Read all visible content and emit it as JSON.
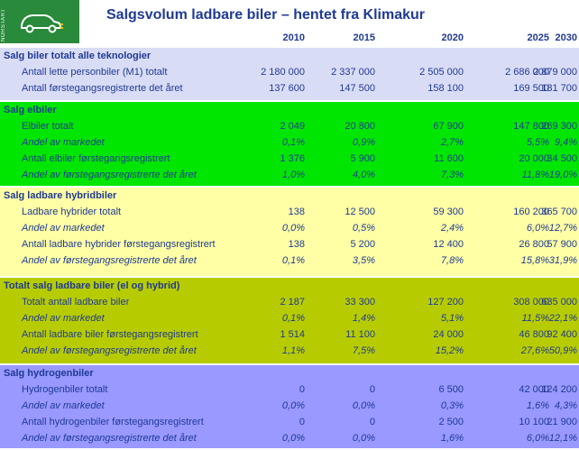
{
  "title": "Salgsvolum ladbare biler – hentet fra Klimakur",
  "logo": {
    "brand": "NORSTART",
    "icon": "electric-car-plug-icon"
  },
  "years": [
    "2010",
    "2015",
    "2020",
    "2025",
    "2030"
  ],
  "sections": [
    {
      "header": "Salg biler totalt alle teknologier",
      "color": "#d9dcf5",
      "rows": [
        {
          "label": "Antall lette personbiler (M1) totalt",
          "italic": false,
          "values": [
            "2 180 000",
            "2 337 000",
            "2 505 000",
            "2 686 000",
            "2 879 000"
          ]
        },
        {
          "label": "Antall førstegangsregistrerte det året",
          "italic": false,
          "values": [
            "137 600",
            "147 500",
            "158 100",
            "169 500",
            "181 700"
          ]
        }
      ]
    },
    {
      "header": "Salg elbiler",
      "color": "#00e600",
      "rows": [
        {
          "label": "Elbiler totalt",
          "italic": false,
          "values": [
            "2 049",
            "20 800",
            "67 900",
            "147 800",
            "269 300"
          ]
        },
        {
          "label": "Andel av markedet",
          "italic": true,
          "values": [
            "0,1%",
            "0,9%",
            "2,7%",
            "5,5%",
            "9,4%"
          ]
        },
        {
          "label": "Antall elbiler førstegangsregistrert",
          "italic": false,
          "values": [
            "1 376",
            "5 900",
            "11 600",
            "20 000",
            "34 500"
          ]
        },
        {
          "label": "Andel av førstegangsregistrerte det året",
          "italic": true,
          "values": [
            "1,0%",
            "4,0%",
            "7,3%",
            "11,8%",
            "19,0%"
          ]
        }
      ]
    },
    {
      "header": "Salg ladbare hybridbiler",
      "color": "#ffffa6",
      "rows": [
        {
          "label": "Ladbare hybrider totalt",
          "italic": false,
          "values": [
            "138",
            "12 500",
            "59 300",
            "160 200",
            "365 700"
          ]
        },
        {
          "label": "Andel av markedet",
          "italic": true,
          "values": [
            "0,0%",
            "0,5%",
            "2,4%",
            "6,0%",
            "12,7%"
          ]
        },
        {
          "label": "Antall ladbare hybrider førstegangsregistrert",
          "italic": false,
          "values": [
            "138",
            "5 200",
            "12 400",
            "26 800",
            "57 900"
          ]
        },
        {
          "label": "Andel av førstegangsregistrerte det året",
          "italic": true,
          "values": [
            "0,1%",
            "3,5%",
            "7,8%",
            "15,8%",
            "31,9%"
          ]
        }
      ]
    },
    {
      "header": "Totalt salg ladbare biler (el og hybrid)",
      "color": "#b7cc00",
      "rows": [
        {
          "label": "Totalt antall ladbare biler",
          "italic": false,
          "values": [
            "2 187",
            "33 300",
            "127 200",
            "308 000",
            "635 000"
          ]
        },
        {
          "label": "Andel av markedet",
          "italic": true,
          "values": [
            "0,1%",
            "1,4%",
            "5,1%",
            "11,5%",
            "22,1%"
          ]
        },
        {
          "label": "Antall ladbare biler førstegangsregistrert",
          "italic": false,
          "values": [
            "1 514",
            "11 100",
            "24 000",
            "46 800",
            "92 400"
          ]
        },
        {
          "label": "Andel av førstegangsregistrerte det året",
          "italic": true,
          "values": [
            "1,1%",
            "7,5%",
            "15,2%",
            "27,6%",
            "50,9%"
          ]
        }
      ]
    },
    {
      "header": "Salg hydrogenbiler",
      "color": "#9999ff",
      "rows": [
        {
          "label": "Hydrogenbiler totalt",
          "italic": false,
          "values": [
            "0",
            "0",
            "6 500",
            "42 000",
            "124 200"
          ]
        },
        {
          "label": "Andel av markedet",
          "italic": true,
          "values": [
            "0,0%",
            "0,0%",
            "0,3%",
            "1,6%",
            "4,3%"
          ]
        },
        {
          "label": "Antall hydrogenbiler førstegangsregistrert",
          "italic": false,
          "values": [
            "0",
            "0",
            "2 500",
            "10 100",
            "21 900"
          ]
        },
        {
          "label": "Andel av førstegangsregistrerte det året",
          "italic": true,
          "values": [
            "0,0%",
            "0,0%",
            "1,6%",
            "6,0%",
            "12,1%"
          ]
        }
      ]
    }
  ]
}
